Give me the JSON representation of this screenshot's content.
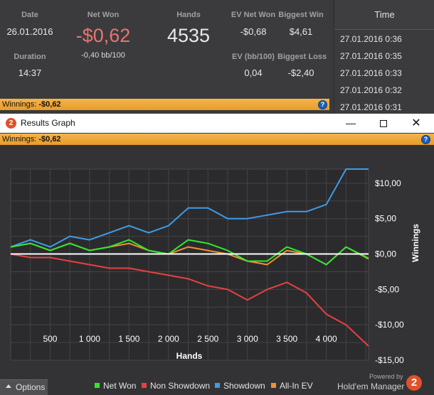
{
  "stats": {
    "date_label": "Date",
    "date_value": "26.01.2016",
    "duration_label": "Duration",
    "duration_value": "14:37",
    "net_won_label": "Net Won",
    "net_won_value": "-$0,62",
    "net_won_bb": "-0,40 bb/100",
    "hands_label": "Hands",
    "hands_value": "4535",
    "ev_net_won_label": "EV Net Won",
    "ev_net_won_value": "-$0,68",
    "biggest_win_label": "Biggest Win",
    "biggest_win_value": "$4,61",
    "ev_bb_label": "EV (bb/100)",
    "ev_bb_value": "0,04",
    "biggest_loss_label": "Biggest Loss",
    "biggest_loss_value": "-$2,40"
  },
  "winnings_bar": {
    "label": "Winnings:",
    "value": "-$0,62"
  },
  "time_list": {
    "header": "Time",
    "rows": [
      "27.01.2016 0:36",
      "27.01.2016 0:35",
      "27.01.2016 0:33",
      "27.01.2016 0:32",
      "27.01.2016 0:31"
    ]
  },
  "graph_window": {
    "title": "Results Graph",
    "app_icon": "2",
    "winnings_label": "Winnings:",
    "winnings_value": "-$0,62",
    "minimize_icon": "minimize-icon",
    "maximize_icon": "maximize-icon",
    "close_icon": "close-icon"
  },
  "footer": {
    "options_label": "Options",
    "powered_by": "Powered by",
    "product_name": "Hold'em Manager",
    "logo_text": "2"
  },
  "colors": {
    "net_won": "#2ee82e",
    "non_showdown": "#e84040",
    "showdown": "#3f9be8",
    "all_in_ev": "#f09030",
    "zero_line": "#ffffff",
    "accent_orange": "#f0a840"
  },
  "chart_data": {
    "type": "line",
    "xlabel": "Hands",
    "ylabel": "Winnings",
    "xlim": [
      0,
      4535
    ],
    "ylim": [
      -15,
      12
    ],
    "x_ticks": [
      500,
      1000,
      1500,
      2000,
      2500,
      3000,
      3500,
      4000
    ],
    "x_tick_labels": [
      "500",
      "1 000",
      "1 500",
      "2 000",
      "2 500",
      "3 000",
      "3 500",
      "4 000"
    ],
    "y_ticks": [
      10,
      5,
      0,
      -5,
      -10,
      -15
    ],
    "y_tick_labels": [
      "$10,00",
      "$5,00",
      "$0,00",
      "-$5,00",
      "-$10,00",
      "-$15,00"
    ],
    "grid": true,
    "legend": "bottom",
    "x": [
      0,
      250,
      500,
      750,
      1000,
      1250,
      1500,
      1750,
      2000,
      2250,
      2500,
      2750,
      3000,
      3250,
      3500,
      3750,
      4000,
      4250,
      4535
    ],
    "series": [
      {
        "name": "Net Won",
        "values": [
          1.0,
          1.5,
          0.5,
          1.5,
          0.5,
          1.0,
          2.0,
          0.5,
          0.0,
          2.0,
          1.5,
          0.5,
          -1.0,
          -1.0,
          1.0,
          0.0,
          -1.5,
          1.0,
          -0.6
        ]
      },
      {
        "name": "Non Showdown",
        "values": [
          0.0,
          -0.5,
          -0.5,
          -1.0,
          -1.5,
          -2.0,
          -2.0,
          -2.5,
          -3.0,
          -3.5,
          -4.5,
          -5.0,
          -6.5,
          -5.0,
          -4.0,
          -5.5,
          -8.5,
          -10.0,
          -13.0
        ]
      },
      {
        "name": "Showdown",
        "values": [
          1.0,
          2.0,
          1.0,
          2.5,
          2.0,
          3.0,
          4.0,
          3.0,
          4.0,
          6.5,
          6.5,
          5.0,
          5.0,
          5.5,
          6.0,
          6.0,
          7.0,
          12.0,
          12.0
        ]
      },
      {
        "name": "All-In EV",
        "values": [
          1.0,
          1.5,
          0.5,
          1.5,
          0.5,
          1.0,
          1.5,
          0.5,
          0.0,
          1.0,
          0.5,
          0.0,
          -1.0,
          -1.5,
          0.5,
          0.0,
          -1.5,
          1.0,
          -0.7
        ]
      }
    ]
  }
}
